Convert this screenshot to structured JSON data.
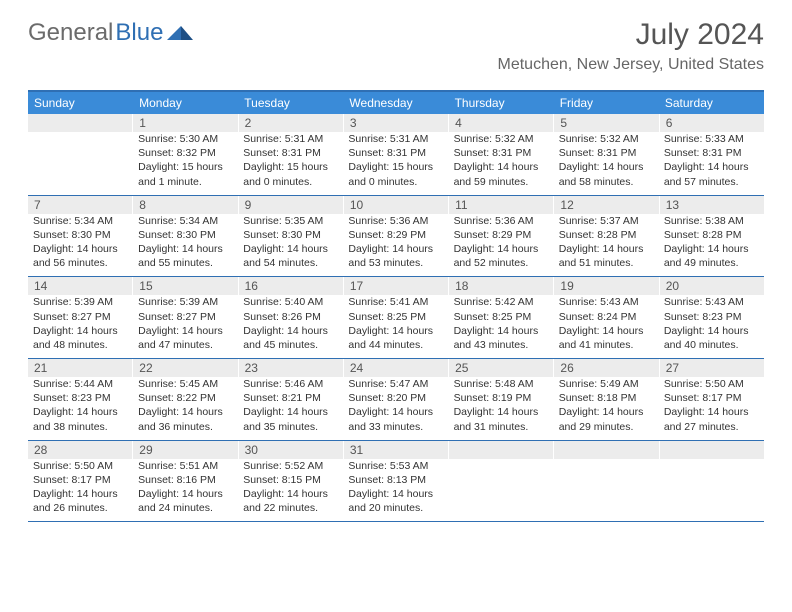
{
  "logo": {
    "text_gray": "General",
    "text_blue": "Blue"
  },
  "title": "July 2024",
  "location": "Metuchen, New Jersey, United States",
  "colors": {
    "header_bar": "#3a8bd8",
    "rule": "#2f6fb3",
    "daynum_bg": "#ececec",
    "text": "#333333",
    "muted": "#666666"
  },
  "weekdays": [
    "Sunday",
    "Monday",
    "Tuesday",
    "Wednesday",
    "Thursday",
    "Friday",
    "Saturday"
  ],
  "weeks": [
    [
      {
        "n": "",
        "sunrise": "",
        "sunset": "",
        "daylight": ""
      },
      {
        "n": "1",
        "sunrise": "Sunrise: 5:30 AM",
        "sunset": "Sunset: 8:32 PM",
        "daylight": "Daylight: 15 hours and 1 minute."
      },
      {
        "n": "2",
        "sunrise": "Sunrise: 5:31 AM",
        "sunset": "Sunset: 8:31 PM",
        "daylight": "Daylight: 15 hours and 0 minutes."
      },
      {
        "n": "3",
        "sunrise": "Sunrise: 5:31 AM",
        "sunset": "Sunset: 8:31 PM",
        "daylight": "Daylight: 15 hours and 0 minutes."
      },
      {
        "n": "4",
        "sunrise": "Sunrise: 5:32 AM",
        "sunset": "Sunset: 8:31 PM",
        "daylight": "Daylight: 14 hours and 59 minutes."
      },
      {
        "n": "5",
        "sunrise": "Sunrise: 5:32 AM",
        "sunset": "Sunset: 8:31 PM",
        "daylight": "Daylight: 14 hours and 58 minutes."
      },
      {
        "n": "6",
        "sunrise": "Sunrise: 5:33 AM",
        "sunset": "Sunset: 8:31 PM",
        "daylight": "Daylight: 14 hours and 57 minutes."
      }
    ],
    [
      {
        "n": "7",
        "sunrise": "Sunrise: 5:34 AM",
        "sunset": "Sunset: 8:30 PM",
        "daylight": "Daylight: 14 hours and 56 minutes."
      },
      {
        "n": "8",
        "sunrise": "Sunrise: 5:34 AM",
        "sunset": "Sunset: 8:30 PM",
        "daylight": "Daylight: 14 hours and 55 minutes."
      },
      {
        "n": "9",
        "sunrise": "Sunrise: 5:35 AM",
        "sunset": "Sunset: 8:30 PM",
        "daylight": "Daylight: 14 hours and 54 minutes."
      },
      {
        "n": "10",
        "sunrise": "Sunrise: 5:36 AM",
        "sunset": "Sunset: 8:29 PM",
        "daylight": "Daylight: 14 hours and 53 minutes."
      },
      {
        "n": "11",
        "sunrise": "Sunrise: 5:36 AM",
        "sunset": "Sunset: 8:29 PM",
        "daylight": "Daylight: 14 hours and 52 minutes."
      },
      {
        "n": "12",
        "sunrise": "Sunrise: 5:37 AM",
        "sunset": "Sunset: 8:28 PM",
        "daylight": "Daylight: 14 hours and 51 minutes."
      },
      {
        "n": "13",
        "sunrise": "Sunrise: 5:38 AM",
        "sunset": "Sunset: 8:28 PM",
        "daylight": "Daylight: 14 hours and 49 minutes."
      }
    ],
    [
      {
        "n": "14",
        "sunrise": "Sunrise: 5:39 AM",
        "sunset": "Sunset: 8:27 PM",
        "daylight": "Daylight: 14 hours and 48 minutes."
      },
      {
        "n": "15",
        "sunrise": "Sunrise: 5:39 AM",
        "sunset": "Sunset: 8:27 PM",
        "daylight": "Daylight: 14 hours and 47 minutes."
      },
      {
        "n": "16",
        "sunrise": "Sunrise: 5:40 AM",
        "sunset": "Sunset: 8:26 PM",
        "daylight": "Daylight: 14 hours and 45 minutes."
      },
      {
        "n": "17",
        "sunrise": "Sunrise: 5:41 AM",
        "sunset": "Sunset: 8:25 PM",
        "daylight": "Daylight: 14 hours and 44 minutes."
      },
      {
        "n": "18",
        "sunrise": "Sunrise: 5:42 AM",
        "sunset": "Sunset: 8:25 PM",
        "daylight": "Daylight: 14 hours and 43 minutes."
      },
      {
        "n": "19",
        "sunrise": "Sunrise: 5:43 AM",
        "sunset": "Sunset: 8:24 PM",
        "daylight": "Daylight: 14 hours and 41 minutes."
      },
      {
        "n": "20",
        "sunrise": "Sunrise: 5:43 AM",
        "sunset": "Sunset: 8:23 PM",
        "daylight": "Daylight: 14 hours and 40 minutes."
      }
    ],
    [
      {
        "n": "21",
        "sunrise": "Sunrise: 5:44 AM",
        "sunset": "Sunset: 8:23 PM",
        "daylight": "Daylight: 14 hours and 38 minutes."
      },
      {
        "n": "22",
        "sunrise": "Sunrise: 5:45 AM",
        "sunset": "Sunset: 8:22 PM",
        "daylight": "Daylight: 14 hours and 36 minutes."
      },
      {
        "n": "23",
        "sunrise": "Sunrise: 5:46 AM",
        "sunset": "Sunset: 8:21 PM",
        "daylight": "Daylight: 14 hours and 35 minutes."
      },
      {
        "n": "24",
        "sunrise": "Sunrise: 5:47 AM",
        "sunset": "Sunset: 8:20 PM",
        "daylight": "Daylight: 14 hours and 33 minutes."
      },
      {
        "n": "25",
        "sunrise": "Sunrise: 5:48 AM",
        "sunset": "Sunset: 8:19 PM",
        "daylight": "Daylight: 14 hours and 31 minutes."
      },
      {
        "n": "26",
        "sunrise": "Sunrise: 5:49 AM",
        "sunset": "Sunset: 8:18 PM",
        "daylight": "Daylight: 14 hours and 29 minutes."
      },
      {
        "n": "27",
        "sunrise": "Sunrise: 5:50 AM",
        "sunset": "Sunset: 8:17 PM",
        "daylight": "Daylight: 14 hours and 27 minutes."
      }
    ],
    [
      {
        "n": "28",
        "sunrise": "Sunrise: 5:50 AM",
        "sunset": "Sunset: 8:17 PM",
        "daylight": "Daylight: 14 hours and 26 minutes."
      },
      {
        "n": "29",
        "sunrise": "Sunrise: 5:51 AM",
        "sunset": "Sunset: 8:16 PM",
        "daylight": "Daylight: 14 hours and 24 minutes."
      },
      {
        "n": "30",
        "sunrise": "Sunrise: 5:52 AM",
        "sunset": "Sunset: 8:15 PM",
        "daylight": "Daylight: 14 hours and 22 minutes."
      },
      {
        "n": "31",
        "sunrise": "Sunrise: 5:53 AM",
        "sunset": "Sunset: 8:13 PM",
        "daylight": "Daylight: 14 hours and 20 minutes."
      },
      {
        "n": "",
        "sunrise": "",
        "sunset": "",
        "daylight": ""
      },
      {
        "n": "",
        "sunrise": "",
        "sunset": "",
        "daylight": ""
      },
      {
        "n": "",
        "sunrise": "",
        "sunset": "",
        "daylight": ""
      }
    ]
  ]
}
